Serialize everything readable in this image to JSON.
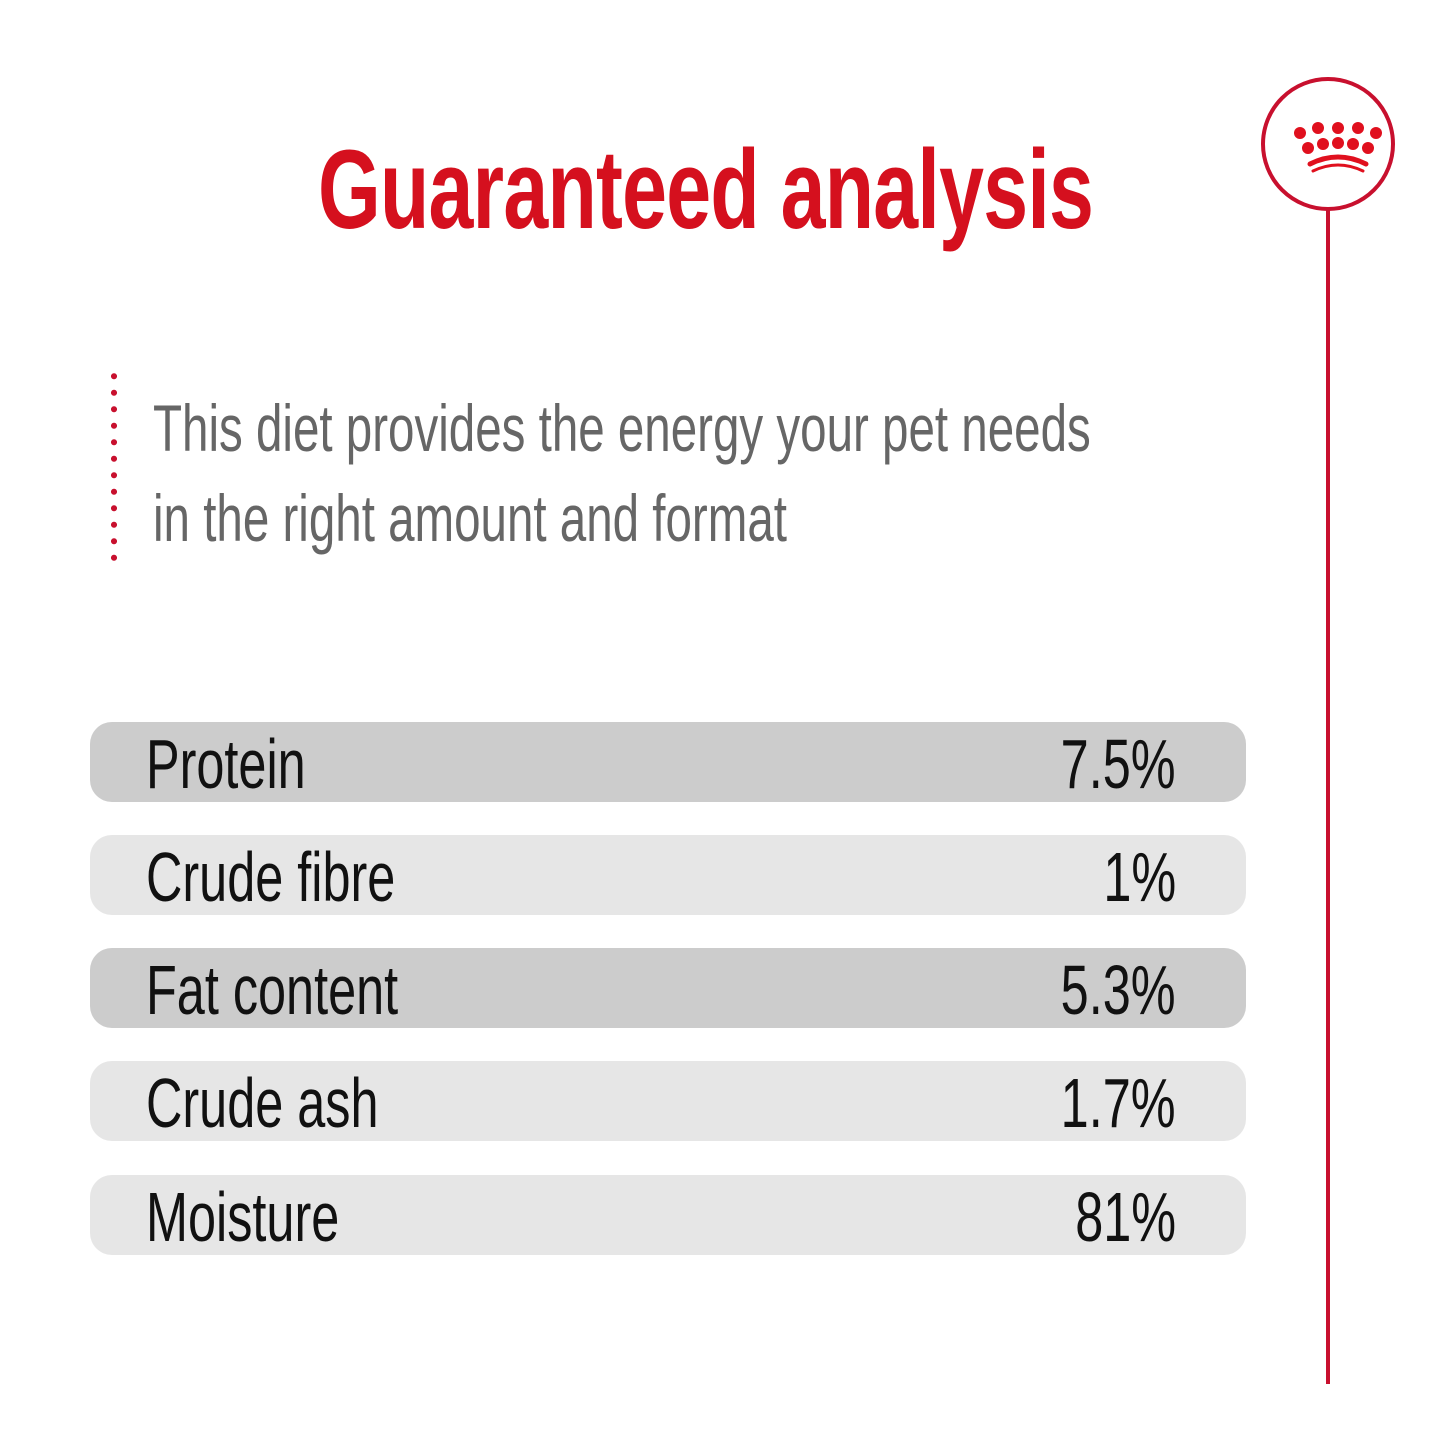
{
  "title": "Guaranteed analysis",
  "intro": {
    "line1": "This diet provides the energy your pet needs",
    "line2": "in the right amount and format"
  },
  "rows": [
    {
      "label": "Protein",
      "value": "7.5%"
    },
    {
      "label": "Crude fibre",
      "value": "1%"
    },
    {
      "label": "Fat content",
      "value": "5.3%"
    },
    {
      "label": "Crude ash",
      "value": "1.7%"
    },
    {
      "label": "Moisture",
      "value": "81%"
    }
  ],
  "colors": {
    "brand": "#d5101e",
    "row_dark": "#cccccc",
    "row_light": "#e6e6e6",
    "text_gray": "#666666"
  },
  "logo": {
    "icon": "crown-icon"
  }
}
